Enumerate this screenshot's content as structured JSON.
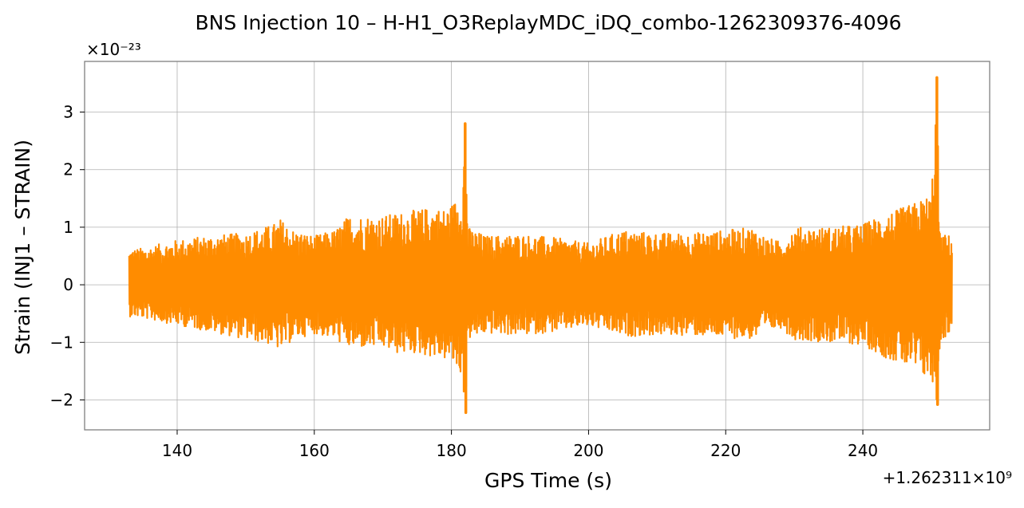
{
  "chart_data": {
    "type": "line",
    "title": "BNS Injection 10 – H-H1_O3ReplayMDC_iDQ_combo-1262309376-4096",
    "xlabel": "GPS Time (s)",
    "ylabel": "Strain (INJ1 – STRAIN)",
    "x_offset_label": "+1.262311×10⁹",
    "y_scale_label": "×10⁻²³",
    "xlim": [
      126.5,
      258.5
    ],
    "ylim": [
      -2.52,
      3.88
    ],
    "x_ticks": [
      140,
      160,
      180,
      200,
      220,
      240
    ],
    "x_tick_labels": [
      "140",
      "160",
      "180",
      "200",
      "220",
      "240"
    ],
    "y_ticks": [
      -2,
      -1,
      0,
      1,
      2,
      3
    ],
    "y_tick_labels": [
      "−2",
      "−1",
      "0",
      "1",
      "2",
      "3"
    ],
    "grid": true,
    "line_color": "#ff8c00",
    "series": [
      {
        "x_range": [
          133.0,
          253.0
        ],
        "envelope_upper": [
          [
            133,
            0.62
          ],
          [
            135,
            0.64
          ],
          [
            140,
            0.78
          ],
          [
            145,
            0.86
          ],
          [
            150,
            0.9
          ],
          [
            154,
            1.05
          ],
          [
            155,
            1.15
          ],
          [
            157,
            0.95
          ],
          [
            160,
            0.85
          ],
          [
            163,
            0.95
          ],
          [
            165,
            1.2
          ],
          [
            170,
            1.2
          ],
          [
            172,
            1.25
          ],
          [
            175,
            1.3
          ],
          [
            177,
            1.35
          ],
          [
            179,
            1.32
          ],
          [
            180,
            1.4
          ],
          [
            181.5,
            1.6
          ],
          [
            182.0,
            2.8
          ],
          [
            182.4,
            1.0
          ],
          [
            185,
            0.85
          ],
          [
            190,
            0.88
          ],
          [
            195,
            0.82
          ],
          [
            200,
            0.72
          ],
          [
            205,
            0.95
          ],
          [
            210,
            0.9
          ],
          [
            215,
            0.9
          ],
          [
            220,
            0.95
          ],
          [
            224,
            1.0
          ],
          [
            226,
            0.82
          ],
          [
            228,
            0.75
          ],
          [
            230,
            1.0
          ],
          [
            235,
            1.0
          ],
          [
            240,
            1.05
          ],
          [
            243,
            1.25
          ],
          [
            245,
            1.3
          ],
          [
            248,
            1.45
          ],
          [
            250,
            1.6
          ],
          [
            250.8,
            3.6
          ],
          [
            251.2,
            0.9
          ],
          [
            253,
            0.85
          ]
        ],
        "envelope_lower": [
          [
            133,
            -0.55
          ],
          [
            135,
            -0.58
          ],
          [
            140,
            -0.7
          ],
          [
            145,
            -0.82
          ],
          [
            150,
            -0.95
          ],
          [
            154,
            -1.05
          ],
          [
            155,
            -1.15
          ],
          [
            157,
            -0.95
          ],
          [
            160,
            -0.85
          ],
          [
            163,
            -0.95
          ],
          [
            165,
            -1.1
          ],
          [
            170,
            -1.1
          ],
          [
            172,
            -1.2
          ],
          [
            175,
            -1.2
          ],
          [
            177,
            -1.25
          ],
          [
            179,
            -1.3
          ],
          [
            180,
            -1.35
          ],
          [
            181.5,
            -1.6
          ],
          [
            182.1,
            -2.22
          ],
          [
            182.4,
            -0.95
          ],
          [
            185,
            -0.85
          ],
          [
            190,
            -0.88
          ],
          [
            195,
            -0.82
          ],
          [
            200,
            -0.72
          ],
          [
            205,
            -0.9
          ],
          [
            210,
            -0.88
          ],
          [
            215,
            -0.88
          ],
          [
            220,
            -0.92
          ],
          [
            224,
            -0.95
          ],
          [
            226,
            -0.82
          ],
          [
            228,
            -0.75
          ],
          [
            230,
            -0.95
          ],
          [
            235,
            -1.0
          ],
          [
            240,
            -1.05
          ],
          [
            243,
            -1.25
          ],
          [
            245,
            -1.35
          ],
          [
            248,
            -1.55
          ],
          [
            250,
            -1.7
          ],
          [
            250.9,
            -2.08
          ],
          [
            251.3,
            -1.0
          ],
          [
            253,
            -0.8
          ]
        ]
      }
    ]
  }
}
